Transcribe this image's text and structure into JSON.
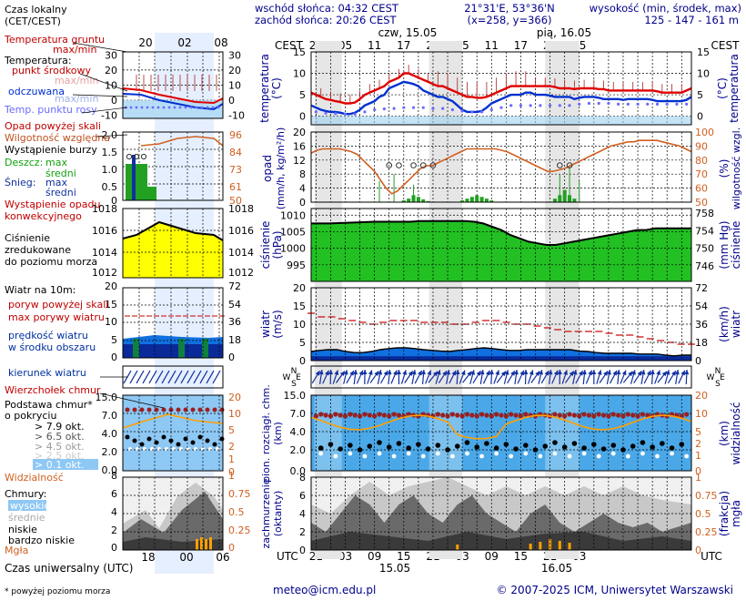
{
  "header": {
    "sunrise": "wschód słońca: 04:32 CEST",
    "sunset": "zachód słońca: 20:26 CEST",
    "coords": "21°31'E, 53°36'N",
    "grid": "(x=258, y=366)",
    "height_title": "wysokość (min, środek, max)",
    "height_values": "125 - 147 - 161 m"
  },
  "legend_top": {
    "time_label": "Czas lokalny",
    "time_zone": "(CET/CEST)",
    "times": [
      "20",
      "02",
      "08"
    ]
  },
  "legend": {
    "temp_ground": "Temperatura gruntu",
    "temp_ground_sub": "max/min",
    "temperature": "Temperatura:",
    "mid_point": "punkt środkowy",
    "max_min": "max/min",
    "felt": "odczuwana",
    "felt_max_min": "max/min",
    "dew_point": "Temp. punktu rosy",
    "precip_above": "Opad powyżej skali",
    "rel_humidity": "Wilgotność względna",
    "storm": "Wystąpienie burzy",
    "rain": "Deszcz:",
    "rain_max": "max",
    "rain_avg": "średni",
    "snow": "Śnieg:",
    "snow_max": "max",
    "snow_avg": "średni",
    "convective_1": "Wystąpienie opadu",
    "convective_2": "konwekcyjnego",
    "pressure_1": "Ciśnienie",
    "pressure_2": "zredukowane",
    "pressure_3": "do poziomu morza",
    "wind_title": "Wiatr na 10m:",
    "gust_above": "poryw powyżej skali",
    "max_gust": "max porywy wiatru",
    "wind_speed": "prędkość wiatru",
    "wind_area": "w środku obszaru",
    "wind_dir": "kierunek wiatru",
    "shear": "Wierzchołek chmur",
    "cloud_base_1": "Podstawa chmur*",
    "cloud_base_2": "o pokryciu",
    "okt_79": "> 7.9 okt.",
    "okt_65": "> 6.5 okt.",
    "okt_45": "> 4.5 okt.",
    "okt_25": "> 2.5 okt.",
    "okt_01": "> 0.1 okt.",
    "visibility": "Widzialność",
    "clouds": "Chmury:",
    "high": "wysokie",
    "mid": "średnie",
    "low": "niskie",
    "very_low": "bardzo niskie",
    "fog": "Mgła",
    "utc_label": "Czas uniwersalny (UTC)",
    "utc_times": [
      "18",
      "00",
      "06"
    ],
    "footnote": "* powyżej poziomu morza"
  },
  "axes": {
    "cest": "CEST",
    "utc": "UTC",
    "day1": "czw, 15.05",
    "day2": "pią, 16.05",
    "date1": "15.05",
    "date2": "16.05",
    "local_hours": [
      "23",
      "05",
      "11",
      "17",
      "23",
      "05",
      "11",
      "17",
      "23",
      "05"
    ],
    "utc_hours": [
      "21",
      "03",
      "09",
      "15",
      "21",
      "03",
      "09",
      "15",
      "21",
      "03"
    ],
    "temp_left": "temperatura",
    "temp_left_unit": "(°C)",
    "temp_right": "temperatura",
    "temp_right_unit": "(°C)",
    "precip_left": "opad",
    "precip_left_unit": "(mm/h, kg/m²/h)",
    "precip_right": "wilgotność wzgl.",
    "precip_right_unit": "(%)",
    "press_left": "ciśnienie",
    "press_left_unit": "(hPa)",
    "press_right": "ciśnienie",
    "press_right_unit": "(mm Hg)",
    "wind_left": "wiatr",
    "wind_left_unit": "(m/s)",
    "wind_right": "wiatr",
    "wind_right_unit": "(km/h)",
    "cloud_left": "pion. rozciągł. chm.",
    "cloud_left_unit": "(km)",
    "cloud_right": "widzialność",
    "cloud_right_unit": "(km)",
    "cover_left": "zachmurzenie",
    "cover_left_unit": "(oktanty)",
    "cover_right": "(frakcja)",
    "cover_right_unit": "mgła",
    "compass": {
      "n": "N",
      "w": "W",
      "e": "E",
      "s": "S"
    }
  },
  "ticks": {
    "temp": [
      "15",
      "10",
      "5",
      "0"
    ],
    "temp_leg": [
      "30",
      "20",
      "10",
      "0",
      "-10"
    ],
    "precip": [
      "20",
      "16",
      "12",
      "8",
      "4",
      "0"
    ],
    "humidity": [
      "100",
      "90",
      "80",
      "70",
      "60",
      "50"
    ],
    "precip_leg": [
      "2.0",
      "1.5",
      "1.0",
      "0.5",
      "0"
    ],
    "humidity_leg": [
      "96",
      "84",
      "73",
      "61",
      "50"
    ],
    "press": [
      "1010",
      "1005",
      "1000",
      "995"
    ],
    "press_mm": [
      "758",
      "754",
      "750",
      "746"
    ],
    "press_leg": [
      "1018",
      "1016",
      "1014",
      "1012"
    ],
    "wind": [
      "20",
      "15",
      "10",
      "5",
      "0"
    ],
    "wind_kmh": [
      "72",
      "54",
      "36",
      "18",
      "0"
    ],
    "cloud": [
      "15.0",
      "7.0",
      "4.0",
      "2.0",
      "0.0"
    ],
    "vis": [
      "20",
      "10",
      "5",
      "2",
      "1",
      "0"
    ],
    "cover": [
      "8",
      "6",
      "4",
      "2",
      "0"
    ],
    "fog": [
      "1",
      "0.75",
      "0.5",
      "0.25",
      "0"
    ]
  },
  "footer": {
    "email": "meteo@icm.edu.pl",
    "copyright": "© 2007-2025 ICM, Uniwersytet Warszawski"
  },
  "colors": {
    "temp": "#e00000",
    "felt": "#0030d0",
    "dew": "#6a6aff",
    "humidity": "#d06020",
    "pressure_fill": "#22c022",
    "pressure_leg_fill": "#ffff00",
    "wind": "#0040c0",
    "gust": "#cc0000",
    "night": "#e6e6e6",
    "legend_day": "#e6efff",
    "cloud_bg": "#4aa8e8",
    "cloud_bg_legend": "#8ec8f4",
    "visibility": "#ffa000"
  },
  "chart_data": [
    {
      "type": "line",
      "name": "temperature",
      "x_hours_local": [
        22,
        23,
        24,
        25,
        26,
        27,
        28,
        29,
        30,
        31,
        32,
        33,
        34,
        35,
        36,
        37,
        38,
        39,
        40,
        41,
        42,
        43,
        44,
        45,
        46,
        47,
        48,
        49,
        50,
        51,
        52,
        53,
        54,
        55,
        56,
        57,
        58,
        59,
        60,
        61,
        62,
        63,
        64,
        65,
        66,
        67,
        68,
        69,
        70,
        71,
        72,
        73,
        74,
        75,
        76,
        77,
        78,
        79,
        80,
        81,
        82,
        83,
        84,
        85,
        86,
        87,
        88,
        89,
        90,
        91,
        92,
        93,
        94,
        95,
        96,
        97,
        98,
        99,
        100
      ],
      "ylim": [
        -2,
        15
      ],
      "series": [
        {
          "values": [
            5.5,
            5,
            4.5,
            4,
            3.8,
            3.5,
            3.3,
            3,
            3,
            3.2,
            4,
            5,
            5.5,
            6,
            6.5,
            7,
            8,
            8.5,
            9,
            10,
            10,
            9.5,
            9,
            8.5,
            8,
            7.5,
            7,
            7,
            6.5,
            6,
            5.5,
            5,
            4.5,
            4.5,
            4.3,
            4.3,
            4.5,
            5,
            5.5,
            6,
            6.5,
            7,
            7,
            7,
            7,
            7,
            7,
            7,
            7,
            7,
            6.8,
            6.5,
            6.5,
            6.5,
            6.3,
            6.5,
            6.5,
            6.5,
            6.5,
            6.3,
            6.3,
            6,
            6,
            6,
            6,
            6,
            6,
            6,
            6,
            6,
            6,
            5.8,
            5.5,
            5.5,
            5.5,
            5.5,
            5.5,
            6,
            6.5
          ]
        },
        {
          "values": [
            2.5,
            2,
            1.5,
            1.2,
            1,
            1,
            0.8,
            0.5,
            0.5,
            0.8,
            1.5,
            2.5,
            3,
            3.5,
            4.5,
            5,
            6.5,
            7,
            7.5,
            8,
            7.8,
            7.5,
            7,
            6,
            5.5,
            5,
            4.5,
            4.5,
            4,
            3.5,
            2.5,
            1.5,
            1,
            1,
            1,
            1.2,
            2,
            3,
            3.5,
            4,
            4.5,
            5,
            5,
            5,
            5.5,
            5.5,
            5,
            5,
            5,
            4.8,
            4.5,
            4.5,
            4.5,
            4.5,
            4,
            4.3,
            4.5,
            4.5,
            4.5,
            4.3,
            4,
            4,
            4,
            4,
            3.8,
            4,
            4,
            4,
            4,
            4,
            3.8,
            3.5,
            3.5,
            3.5,
            3.5,
            3.5,
            3.5,
            3.8,
            4.5
          ]
        },
        {
          "values": [
            1,
            1,
            0.8,
            0.7,
            0.6,
            0.6,
            0.5,
            0.5,
            0.5,
            0.5,
            0.7,
            1,
            1.2,
            1.5,
            1.5,
            1.7,
            1.7,
            1.8,
            1.8,
            2,
            2,
            2,
            2,
            2,
            1.8,
            1.8,
            1.8,
            1.8,
            1.7,
            1.5,
            1.5,
            1.2,
            1,
            1,
            1,
            1,
            1.2,
            1.5,
            1.8,
            2,
            2,
            2.5,
            2.5,
            2.5,
            2.5,
            2.5,
            2.5,
            2.5,
            2.5,
            2.5,
            2.5,
            2.5,
            2.5,
            2.5,
            2.5,
            2.8,
            3,
            3,
            3,
            3,
            3,
            3,
            2.8,
            2.8,
            2.8,
            2.8,
            2.8,
            2.8,
            2.8,
            2.8,
            2.8,
            2.8,
            2.8,
            2.8,
            2.8,
            2.8,
            2.8,
            2.8,
            2.8
          ]
        }
      ]
    },
    {
      "type": "line",
      "name": "humidity",
      "ylim": [
        50,
        100
      ],
      "series": [
        {
          "values": [
            85,
            87,
            88,
            88,
            88,
            88,
            87,
            86,
            84,
            80,
            76,
            72,
            66,
            60,
            56,
            58,
            62,
            66,
            70,
            74,
            76,
            76,
            78,
            80,
            82,
            84,
            86,
            88,
            88,
            88,
            88,
            88,
            88,
            87,
            86,
            84,
            82,
            80,
            78,
            76,
            74,
            72,
            72,
            73,
            74,
            76,
            78,
            80,
            82,
            84,
            86,
            88,
            90,
            91,
            92,
            93,
            93,
            94,
            94,
            94,
            94,
            93,
            92,
            91,
            90,
            88,
            86
          ]
        }
      ]
    },
    {
      "type": "area",
      "name": "pressure",
      "ylim": [
        990,
        1012
      ],
      "series": [
        {
          "values": [
            1007.5,
            1007.5,
            1007.5,
            1007.6,
            1007.7,
            1007.8,
            1007.9,
            1008,
            1008,
            1008,
            1008,
            1008,
            1008.2,
            1008.2,
            1008.2,
            1008.2,
            1008.2,
            1008.2,
            1008,
            1007.5,
            1006.5,
            1005.5,
            1004,
            1003,
            1002,
            1001.5,
            1001,
            1001,
            1001.5,
            1002,
            1002.5,
            1003,
            1003.5,
            1004,
            1004.5,
            1005,
            1005.5,
            1005.5,
            1006,
            1006,
            1006,
            1006,
            1006
          ]
        }
      ]
    },
    {
      "type": "line",
      "name": "wind",
      "ylim": [
        0,
        20
      ],
      "series": [
        {
          "values": [
            2.5,
            2.8,
            3,
            3,
            2.5,
            2.2,
            2.2,
            2.5,
            3,
            3.3,
            3.5,
            3.5,
            3.3,
            3,
            2.8,
            2.6,
            2.5,
            2.8,
            3,
            3.3,
            3.5,
            3.3,
            3,
            2.8,
            2.8,
            3,
            3,
            3,
            3,
            3,
            3,
            2.6,
            2.5,
            2.2,
            2,
            2,
            2,
            2,
            1.8,
            1.8,
            1.8,
            1.5,
            1.3,
            1.5,
            1.5
          ]
        },
        {
          "values": [
            13,
            12,
            12,
            11.5,
            11,
            10.5,
            10,
            10.5,
            11,
            11,
            11,
            10.5,
            10.5,
            10.5,
            10,
            10,
            10.5,
            11,
            11,
            10.5,
            10,
            10,
            9.5,
            9,
            8.5,
            8,
            8,
            8,
            8,
            7.5,
            7,
            7,
            6.5,
            6,
            5.5,
            5,
            4.5,
            4.5
          ]
        }
      ]
    }
  ]
}
